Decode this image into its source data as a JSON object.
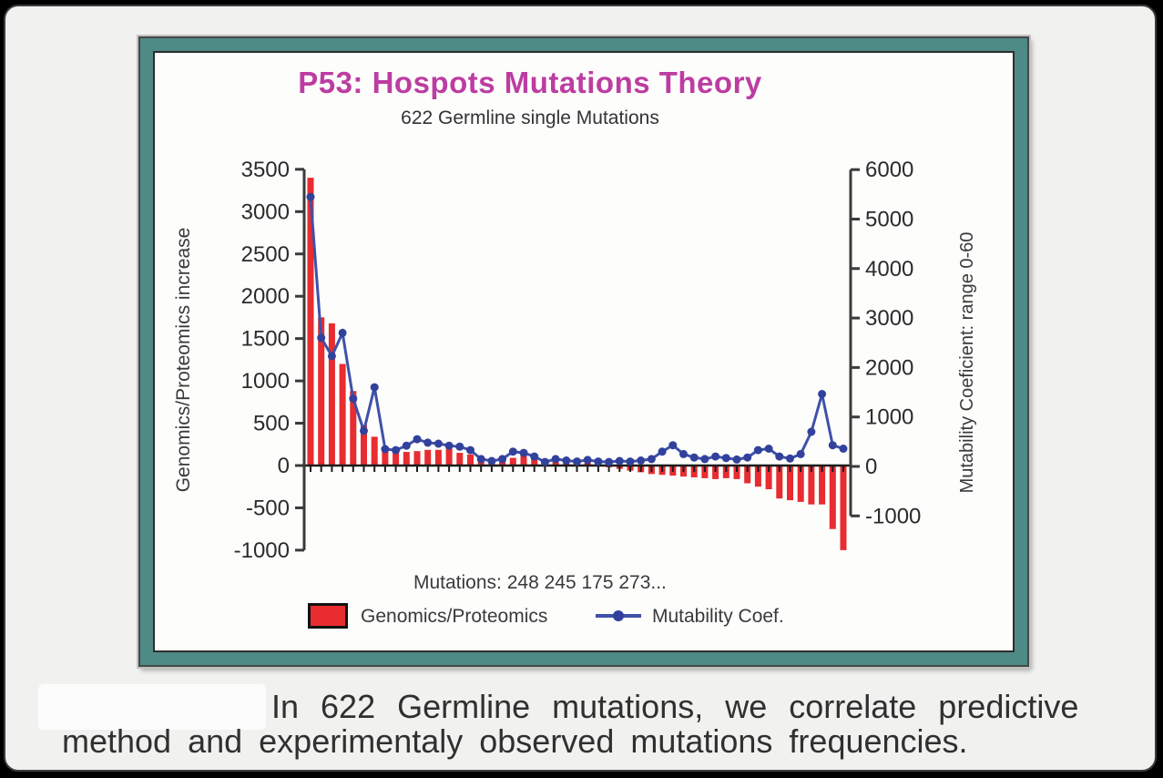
{
  "slide": {
    "title": "P53: Hospots Mutations Theory",
    "subtitle": "622 Germline single Mutations",
    "title_color": "#bc3da1",
    "frame_color": "#4e8a86"
  },
  "chart_data": {
    "type": "bar+line combo",
    "title": "P53: Hospots Mutations Theory",
    "subtitle": "622 Germline single Mutations",
    "x_axis_label": "Mutations: 248 245 175 273...",
    "x_first_categories": [
      "248",
      "245",
      "175",
      "273"
    ],
    "n_points": 51,
    "grid": "off",
    "legend_position": "bottom",
    "left_axis": {
      "title": "Genomics/Proteomics increase",
      "range": [
        -1000,
        3500
      ],
      "ticks": [
        3500,
        3000,
        2500,
        2000,
        1500,
        1000,
        500,
        0,
        -500,
        -1000
      ]
    },
    "right_axis": {
      "title": "Mutability Coeficient: range 0-60",
      "range": [
        -1000,
        6000
      ],
      "ticks": [
        6000,
        5000,
        4000,
        3000,
        2000,
        1000,
        0,
        -1000
      ]
    },
    "series": [
      {
        "name": "Genomics/Proteomics",
        "type": "bar",
        "axis": "left",
        "color": "#e82c30",
        "values": [
          3400,
          1750,
          1680,
          1200,
          880,
          480,
          340,
          220,
          170,
          160,
          170,
          185,
          185,
          200,
          150,
          130,
          100,
          80,
          110,
          90,
          120,
          80,
          60,
          90,
          70,
          50,
          40,
          20,
          -20,
          -40,
          -60,
          -80,
          -100,
          -110,
          -120,
          -130,
          -140,
          -150,
          -160,
          -150,
          -160,
          -210,
          -250,
          -280,
          -390,
          -410,
          -430,
          -460,
          -460,
          -750,
          -1000
        ]
      },
      {
        "name": "Mutability Coef.",
        "type": "line",
        "axis": "right",
        "color": "#3f51a8",
        "marker_color": "#31419c",
        "values": [
          5450,
          2600,
          2230,
          2700,
          1370,
          720,
          1600,
          350,
          330,
          420,
          550,
          480,
          460,
          420,
          400,
          330,
          150,
          110,
          150,
          300,
          275,
          200,
          90,
          150,
          120,
          100,
          130,
          100,
          90,
          110,
          100,
          120,
          150,
          300,
          430,
          250,
          180,
          150,
          200,
          170,
          140,
          180,
          330,
          360,
          200,
          160,
          250,
          700,
          1465,
          430,
          360
        ]
      }
    ]
  },
  "caption": {
    "line1": "In 622 Germline mutations, we correlate predictive",
    "line2": "method and experimentaly observed mutations frequencies."
  }
}
